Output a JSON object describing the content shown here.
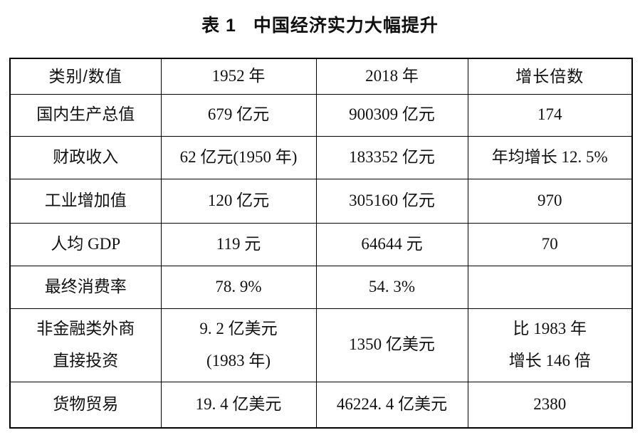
{
  "page": {
    "background": "#ffffff",
    "text_color": "#111111",
    "border_color": "#000000"
  },
  "title": {
    "prefix": "表 1",
    "text": "中国经济实力大幅提升"
  },
  "table": {
    "headers": [
      "类别/数值",
      "1952 年",
      "2018 年",
      "增长倍数"
    ],
    "rows": [
      {
        "cells": [
          [
            "国内生产总值"
          ],
          [
            "679 亿元"
          ],
          [
            "900309 亿元"
          ],
          [
            "174"
          ]
        ]
      },
      {
        "cells": [
          [
            "财政收入"
          ],
          [
            "62 亿元(1950 年)"
          ],
          [
            "183352 亿元"
          ],
          [
            "年均增长 12. 5%"
          ]
        ]
      },
      {
        "cells": [
          [
            "工业增加值"
          ],
          [
            "120 亿元"
          ],
          [
            "305160 亿元"
          ],
          [
            "970"
          ]
        ]
      },
      {
        "cells": [
          [
            "人均 GDP"
          ],
          [
            "119 元"
          ],
          [
            "64644 元"
          ],
          [
            "70"
          ]
        ]
      },
      {
        "cells": [
          [
            "最终消费率"
          ],
          [
            "78. 9%"
          ],
          [
            "54. 3%"
          ],
          [
            ""
          ]
        ]
      },
      {
        "cells": [
          [
            "非金融类外商",
            "直接投资"
          ],
          [
            "9. 2 亿美元",
            "(1983 年)"
          ],
          [
            "1350 亿美元"
          ],
          [
            "比 1983 年",
            "增长 146 倍"
          ]
        ]
      },
      {
        "cells": [
          [
            "货物贸易"
          ],
          [
            "19. 4 亿美元"
          ],
          [
            "46224. 4 亿美元"
          ],
          [
            "2380"
          ]
        ]
      }
    ]
  },
  "chart_data": {
    "type": "table",
    "title": "表 1 中国经济实力大幅提升",
    "columns": [
      "类别/数值",
      "1952 年",
      "2018 年",
      "增长倍数"
    ],
    "rows": [
      [
        "国内生产总值",
        "679 亿元",
        "900309 亿元",
        "174"
      ],
      [
        "财政收入",
        "62 亿元(1950 年)",
        "183352 亿元",
        "年均增长 12.5%"
      ],
      [
        "工业增加值",
        "120 亿元",
        "305160 亿元",
        "970"
      ],
      [
        "人均 GDP",
        "119 元",
        "64644 元",
        "70"
      ],
      [
        "最终消费率",
        "78.9%",
        "54.3%",
        ""
      ],
      [
        "非金融类外商直接投资",
        "9.2 亿美元(1983 年)",
        "1350 亿美元",
        "比 1983 年增长 146 倍"
      ],
      [
        "货物贸易",
        "19.4 亿美元",
        "46224.4 亿美元",
        "2380"
      ]
    ]
  }
}
